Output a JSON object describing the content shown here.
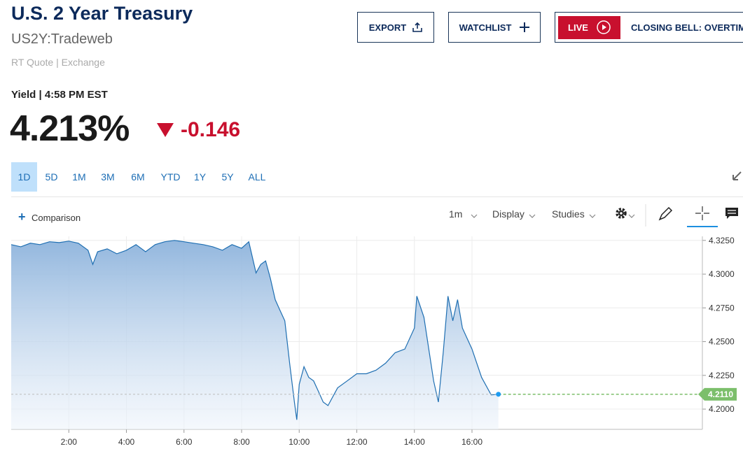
{
  "header": {
    "title": "U.S. 2 Year Treasury",
    "symbol": "US2Y:Tradeweb",
    "quote_source": "RT Quote | Exchange"
  },
  "buttons": [
    "EXPORT",
    "WATCHLIST"
  ],
  "live": {
    "badge": "LIVE",
    "text": "CLOSING BELL: OVERTIME"
  },
  "quote": {
    "label": "Yield | 4:58 PM EST",
    "last": "4.213%",
    "change": "-0.146"
  },
  "ranges": [
    "1D",
    "5D",
    "1M",
    "3M",
    "6M",
    "YTD",
    "1Y",
    "5Y",
    "ALL"
  ],
  "selected_range_index": 0,
  "toolbar": {
    "comparison": "Comparison",
    "interval": "1m",
    "display": "Display",
    "studies": "Studies"
  },
  "chart_data": {
    "type": "area",
    "x": [
      0,
      0.333,
      0.667,
      1,
      1.333,
      1.667,
      2,
      2.333,
      2.667,
      2.833,
      3,
      3.333,
      3.667,
      4,
      4.333,
      4.667,
      5,
      5.333,
      5.667,
      6,
      6.333,
      6.667,
      7,
      7.333,
      7.667,
      8,
      8.25,
      8.5,
      8.667,
      8.833,
      9,
      9.167,
      9.333,
      9.5,
      9.667,
      9.833,
      9.917,
      10,
      10.167,
      10.333,
      10.5,
      10.667,
      10.833,
      11,
      11.333,
      11.667,
      12,
      12.333,
      12.667,
      13,
      13.333,
      13.667,
      14,
      14.083,
      14.333,
      14.667,
      14.833,
      15,
      15.167,
      15.333,
      15.5,
      15.667,
      16,
      16.333,
      16.667,
      16.917
    ],
    "values": [
      4.3219,
      4.3203,
      4.3229,
      4.3219,
      4.324,
      4.3234,
      4.3245,
      4.3229,
      4.3177,
      4.3072,
      4.3166,
      4.3187,
      4.3151,
      4.3177,
      4.3219,
      4.3166,
      4.3219,
      4.324,
      4.325,
      4.324,
      4.3229,
      4.3219,
      4.3203,
      4.3177,
      4.3219,
      4.3192,
      4.324,
      4.3009,
      4.3072,
      4.3098,
      4.2968,
      4.2811,
      4.2732,
      4.2654,
      4.234,
      4.2052,
      4.1921,
      4.2183,
      4.2314,
      4.2235,
      4.2209,
      4.2131,
      4.2052,
      4.2026,
      4.2157,
      4.2209,
      4.2262,
      4.2262,
      4.2288,
      4.234,
      4.2418,
      4.2445,
      4.2601,
      4.2837,
      4.268,
      4.2209,
      4.2052,
      4.2418,
      4.2837,
      4.2654,
      4.2811,
      4.2601,
      4.2445,
      4.2235,
      4.2105,
      4.211
    ],
    "color": "#1f6fb2",
    "xlim": [
      0,
      24
    ],
    "xticks": [
      {
        "value": 2,
        "label": "2:00"
      },
      {
        "value": 4,
        "label": "4:00"
      },
      {
        "value": 6,
        "label": "6:00"
      },
      {
        "value": 8,
        "label": "8:00"
      },
      {
        "value": 10,
        "label": "10:00"
      },
      {
        "value": 12,
        "label": "12:00"
      },
      {
        "value": 14,
        "label": "14:00"
      },
      {
        "value": 16,
        "label": "16:00"
      }
    ],
    "ylim": [
      4.185,
      4.328
    ],
    "yticks": [
      {
        "value": 4.2,
        "label": "4.2000"
      },
      {
        "value": 4.225,
        "label": "4.2250"
      },
      {
        "value": 4.25,
        "label": "4.2500"
      },
      {
        "value": 4.275,
        "label": "4.2750"
      },
      {
        "value": 4.3,
        "label": "4.3000"
      },
      {
        "value": 4.325,
        "label": "4.3250"
      }
    ],
    "grid": true,
    "last_label": {
      "value": 4.211,
      "label": "4.2110"
    },
    "last_label_color": "#7cbf6b"
  }
}
